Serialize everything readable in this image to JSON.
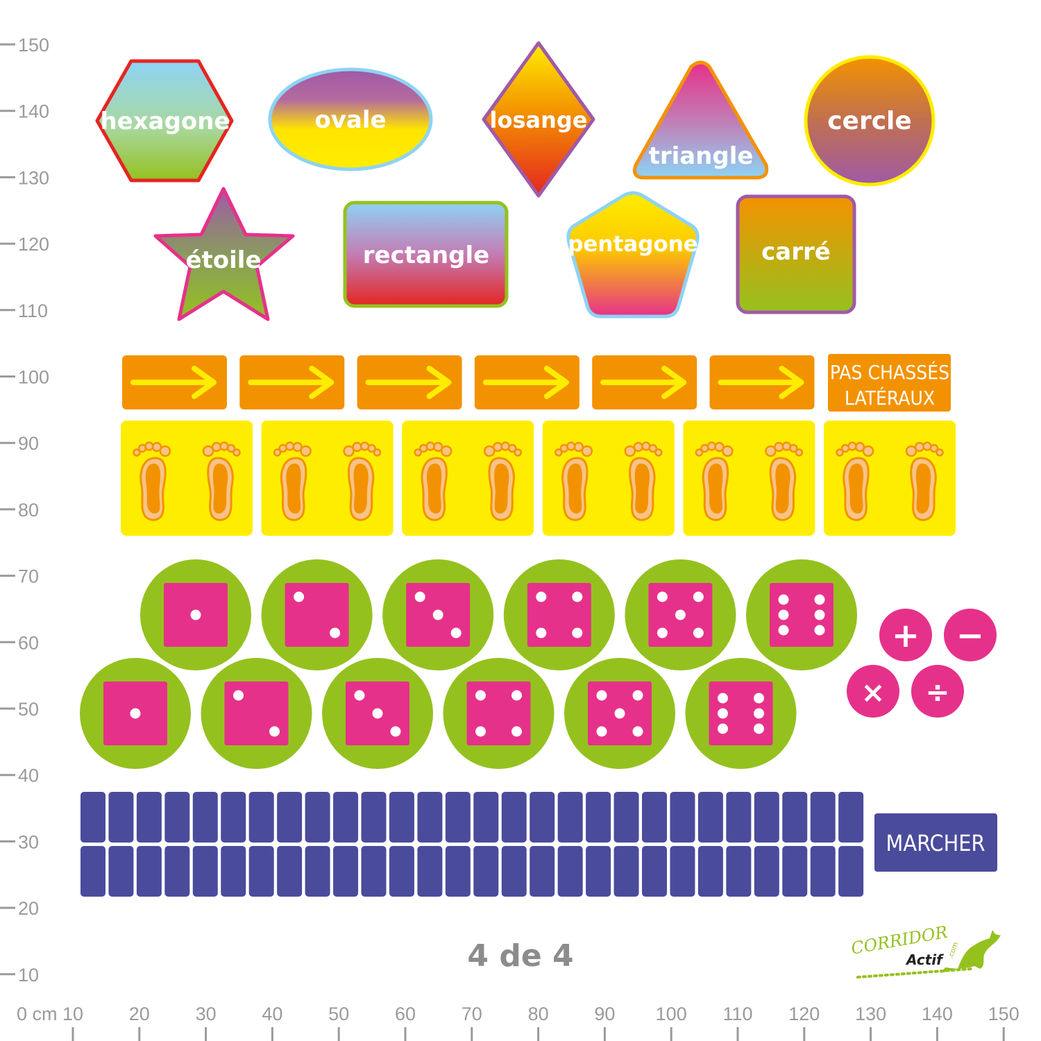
{
  "colors": {
    "ruler_text": "#9a9a9a",
    "arrow_bg": "#f39200",
    "arrow_fg": "#ffed00",
    "feet_bg": "#ffed00",
    "feet_fg": "#f39200",
    "circle_green": "#95c11f",
    "dice_pink": "#e6318a",
    "walk_blue": "#4a4b9b"
  },
  "ruler": {
    "vertical_labels": [
      "150",
      "140",
      "130",
      "120",
      "110",
      "100",
      "90",
      "80",
      "70",
      "60",
      "50",
      "40",
      "30",
      "20",
      "10"
    ],
    "horizontal_labels": [
      "0 cm 10",
      "20",
      "30",
      "40",
      "50",
      "60",
      "70",
      "80",
      "90",
      "100",
      "110",
      "120",
      "130",
      "140",
      "150"
    ]
  },
  "shapes": [
    {
      "label": "hexagone",
      "kind": "hexagon"
    },
    {
      "label": "ovale",
      "kind": "oval"
    },
    {
      "label": "losange",
      "kind": "diamond"
    },
    {
      "label": "triangle",
      "kind": "triangle"
    },
    {
      "label": "cercle",
      "kind": "circle"
    },
    {
      "label": "étoile",
      "kind": "star"
    },
    {
      "label": "rectangle",
      "kind": "rectangle"
    },
    {
      "label": "pentagone",
      "kind": "pentagon"
    },
    {
      "label": "carré",
      "kind": "square"
    }
  ],
  "arrows": {
    "count": 6,
    "icon": "arrow-right-icon",
    "caption_line1": "PAS CHASSÉS",
    "caption_line2": "LATÉRAUX"
  },
  "feet": {
    "count": 6,
    "icon": "footprints-icon"
  },
  "dice": {
    "row1": [
      1,
      2,
      3,
      4,
      5,
      6
    ],
    "row2": [
      1,
      2,
      3,
      4,
      5,
      6
    ]
  },
  "operators": [
    "+",
    "−",
    "×",
    "÷"
  ],
  "walk": {
    "tiles_per_row": 28,
    "rows": 2,
    "caption": "MARCHER"
  },
  "page_label": "4 de 4",
  "logo": {
    "line1": "CORRIDOR",
    "line2": "Actif",
    "suffix": ".com"
  }
}
